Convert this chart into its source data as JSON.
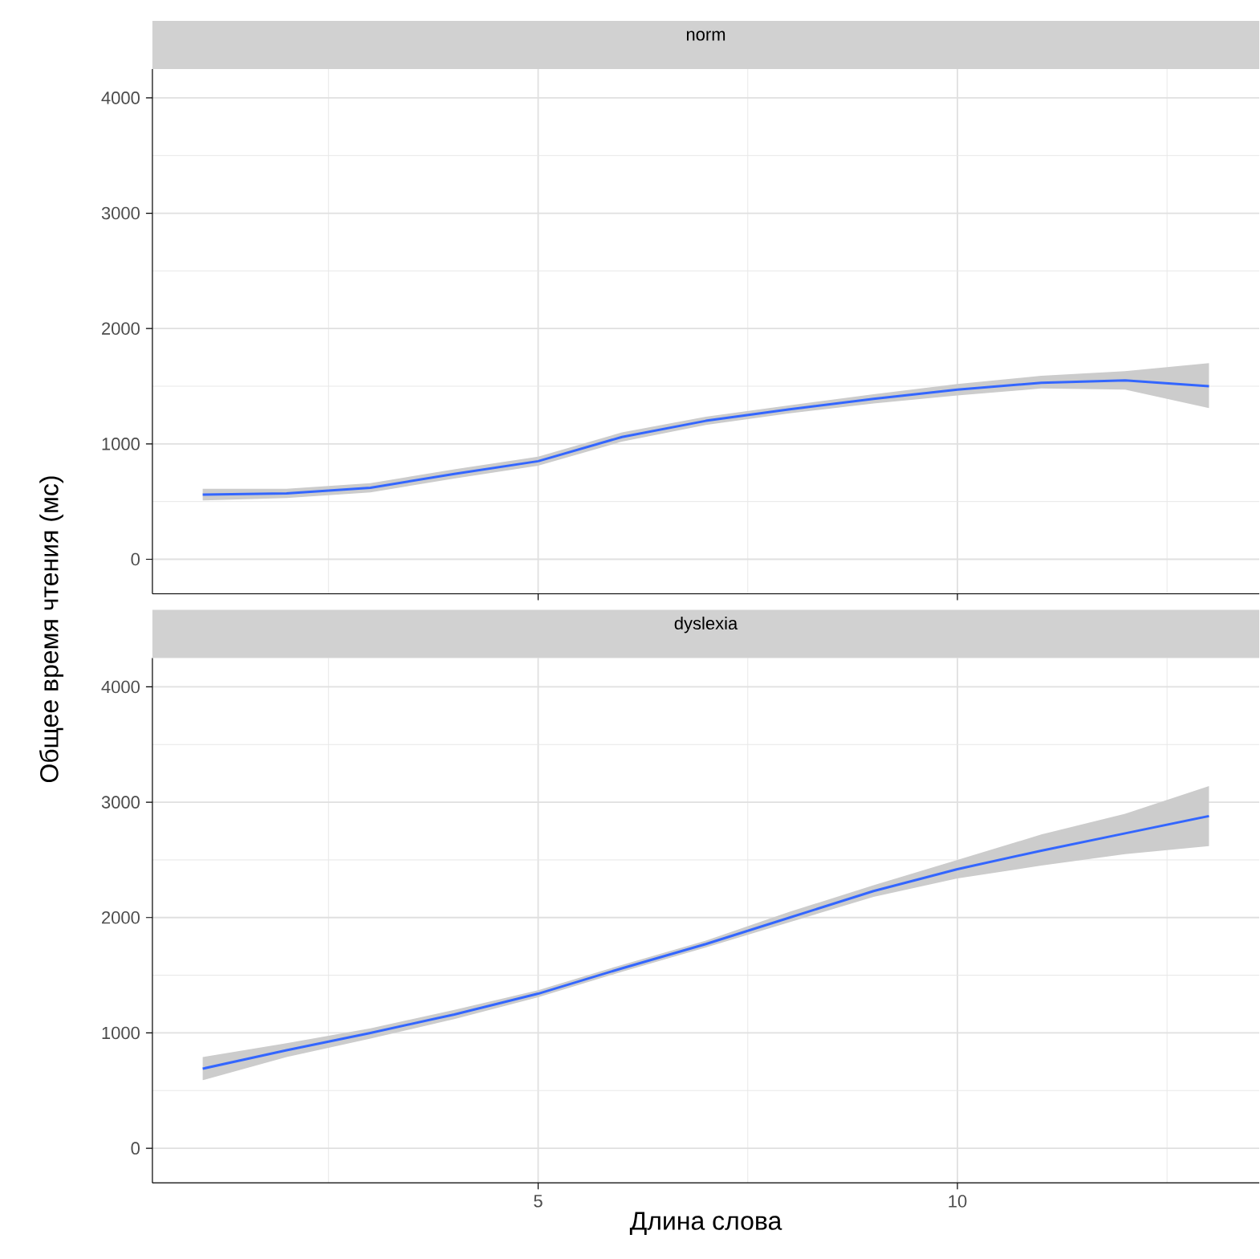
{
  "chart_data": [
    {
      "type": "line",
      "title": "norm",
      "ylabel": "Общее время чтения (мс)",
      "xlim": [
        0.4,
        13.6
      ],
      "ylim": [
        -300,
        4250
      ],
      "xticks": [
        5,
        10
      ],
      "yticks": [
        0,
        1000,
        2000,
        3000,
        4000
      ],
      "grid": true,
      "tick_labels": "y",
      "x": [
        1,
        2,
        3,
        4,
        5,
        6,
        7,
        8,
        9,
        10,
        11,
        12,
        13
      ],
      "series": [
        {
          "color": "#3366ff",
          "values": [
            560,
            570,
            620,
            740,
            850,
            1060,
            1200,
            1300,
            1390,
            1470,
            1530,
            1550,
            1500
          ],
          "lower": [
            510,
            530,
            580,
            700,
            810,
            1020,
            1165,
            1265,
            1350,
            1420,
            1480,
            1470,
            1310
          ],
          "upper": [
            610,
            610,
            660,
            780,
            890,
            1100,
            1235,
            1335,
            1430,
            1520,
            1590,
            1630,
            1700
          ]
        }
      ]
    },
    {
      "type": "line",
      "title": "dyslexia",
      "xlabel": "Длина слова",
      "xlim": [
        0.4,
        13.6
      ],
      "ylim": [
        -300,
        4250
      ],
      "xticks": [
        5,
        10
      ],
      "yticks": [
        0,
        1000,
        2000,
        3000,
        4000
      ],
      "grid": true,
      "x": [
        1,
        2,
        3,
        4,
        5,
        6,
        7,
        8,
        9,
        10,
        11,
        12,
        13
      ],
      "series": [
        {
          "color": "#3366ff",
          "values": [
            690,
            850,
            1000,
            1160,
            1340,
            1560,
            1770,
            2000,
            2230,
            2420,
            2580,
            2730,
            2880
          ],
          "lower": [
            590,
            790,
            950,
            1120,
            1310,
            1530,
            1740,
            1960,
            2180,
            2340,
            2450,
            2550,
            2620
          ],
          "upper": [
            790,
            910,
            1040,
            1200,
            1370,
            1590,
            1800,
            2050,
            2280,
            2500,
            2720,
            2900,
            3140
          ]
        }
      ]
    }
  ]
}
